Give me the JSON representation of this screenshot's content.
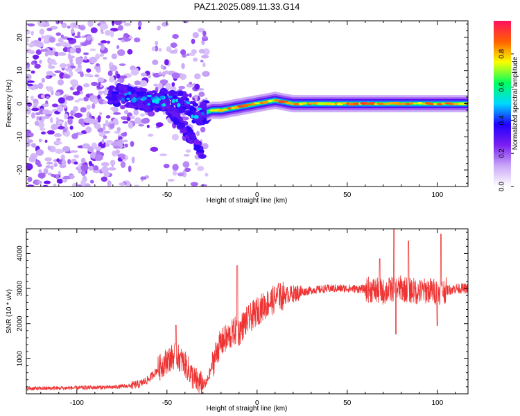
{
  "title": "PAZ1.2025.089.11.33.G14",
  "chart_data": [
    {
      "type": "heatmap",
      "xlabel": "Height of straight line (km)",
      "ylabel": "Frequency (Hz)",
      "xlim": [
        -128,
        117
      ],
      "ylim": [
        -25,
        25
      ],
      "xticks": [
        -100,
        -50,
        0,
        50,
        100
      ],
      "yticks": [
        -20,
        -10,
        0,
        10,
        20
      ],
      "colorbar": {
        "label": "Normalized spectral amplitude",
        "range": [
          0,
          1
        ],
        "ticks": [
          "0.0",
          "0.2",
          "0.4",
          "0.6",
          "0.8"
        ],
        "tick_values": [
          0,
          0.2,
          0.4,
          0.6,
          0.8
        ],
        "colors": [
          "#ffffff",
          "#c9a7f7",
          "#7a1ef0",
          "#2000ff",
          "#00d8ff",
          "#00ff60",
          "#f8ff00",
          "#ff6000",
          "#ff1060"
        ]
      },
      "ridge": {
        "x": [
          -80,
          -70,
          -60,
          -50,
          -40,
          -35,
          -30,
          -25,
          -20,
          -10,
          0,
          10,
          20,
          30,
          40,
          50,
          60,
          70,
          80,
          90,
          100,
          110,
          117
        ],
        "y": [
          3,
          2,
          1,
          1,
          0,
          -3,
          -3,
          -2,
          -2,
          -1,
          0,
          1,
          0,
          0,
          0,
          0,
          0,
          0,
          0,
          0,
          0,
          0,
          0
        ]
      },
      "regions": [
        {
          "description": "scattered noise",
          "x": [
            -128,
            -30
          ],
          "y": [
            -25,
            25
          ],
          "amplitude": 0.15
        },
        {
          "description": "descending branch",
          "x": [
            -50,
            -30
          ],
          "y": [
            -17,
            2
          ],
          "amplitude": 0.35
        },
        {
          "description": "strong stable carrier",
          "x": [
            -25,
            117
          ],
          "y": [
            -1,
            1
          ],
          "amplitude": 0.85
        }
      ]
    },
    {
      "type": "line",
      "xlabel": "Height of straight line (km)",
      "ylabel": "SNR (10 * v/v)",
      "xlim": [
        -128,
        117
      ],
      "ylim": [
        0,
        4700
      ],
      "xticks": [
        -100,
        -50,
        0,
        50,
        100
      ],
      "yticks": [
        1000,
        2000,
        3000,
        4000
      ],
      "color": "#ee3333",
      "series": [
        {
          "x": [
            -128,
            -110,
            -90,
            -80,
            -70,
            -65,
            -60,
            -55,
            -50,
            -45,
            -40,
            -35,
            -30,
            -28,
            -25,
            -22,
            -20,
            -15,
            -12,
            -10,
            -8,
            -5,
            0,
            5,
            10,
            15,
            20,
            25,
            30,
            40,
            50,
            60,
            65,
            70,
            75,
            80,
            85,
            90,
            95,
            100,
            105,
            110,
            117
          ],
          "y": [
            150,
            160,
            180,
            190,
            230,
            280,
            420,
            700,
            950,
            1100,
            850,
            420,
            250,
            300,
            800,
            1250,
            1450,
            1650,
            1800,
            1750,
            1950,
            2100,
            2350,
            2550,
            2700,
            2800,
            2850,
            2900,
            2950,
            3000,
            3000,
            2980,
            2950,
            2900,
            2980,
            3000,
            2950,
            2900,
            2950,
            2900,
            2950,
            3000,
            3000
          ]
        }
      ],
      "spikes": [
        {
          "x": -45,
          "peak": 1950
        },
        {
          "x": -11,
          "peak": 3650
        },
        {
          "x": 12,
          "peak": 3150
        },
        {
          "x": 68,
          "peak": 3850
        },
        {
          "x": 76,
          "peak": 4700
        },
        {
          "x": 84,
          "peak": 4350
        },
        {
          "x": 102,
          "peak": 4550
        },
        {
          "x": 77,
          "peak": 1700
        },
        {
          "x": 100,
          "peak": 1950
        }
      ]
    }
  ]
}
